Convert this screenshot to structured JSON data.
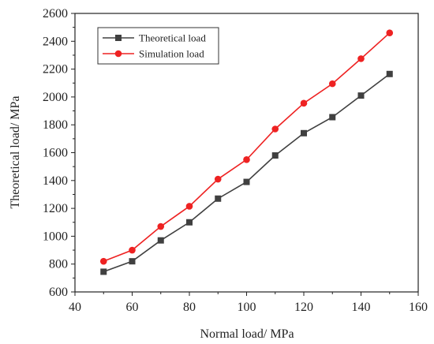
{
  "chart_data": {
    "type": "line",
    "xlabel": "Normal load/ MPa",
    "ylabel": "Theoretical load/ MPa",
    "xlim": [
      40,
      160
    ],
    "ylim": [
      600,
      2600
    ],
    "xticks": [
      "40",
      "60",
      "80",
      "100",
      "120",
      "140",
      "160"
    ],
    "yticks": [
      "600",
      "800",
      "1000",
      "1200",
      "1400",
      "1600",
      "1800",
      "2000",
      "2200",
      "2400",
      "2600"
    ],
    "grid": false,
    "legend_position": "top-left",
    "x": [
      50,
      60,
      70,
      80,
      90,
      100,
      110,
      120,
      130,
      140,
      150
    ],
    "series": [
      {
        "name": "Theoretical load",
        "color": "#404040",
        "marker": "square",
        "values": [
          745,
          820,
          970,
          1100,
          1270,
          1390,
          1580,
          1740,
          1855,
          2010,
          2165
        ]
      },
      {
        "name": "Simulation load",
        "color": "#ee2222",
        "marker": "circle",
        "values": [
          820,
          900,
          1070,
          1215,
          1410,
          1550,
          1770,
          1955,
          2095,
          2275,
          2460
        ]
      }
    ]
  }
}
